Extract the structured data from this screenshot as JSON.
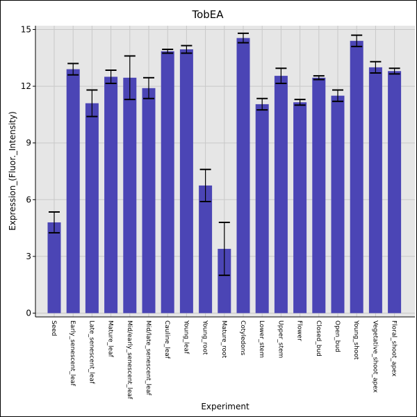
{
  "chart_data": {
    "type": "bar",
    "title": "TobEA",
    "xlabel": "Experiment",
    "ylabel": "Expression_(Fluor._Intensity)",
    "ylim": [
      -0.2,
      15.2
    ],
    "yticks": [
      0,
      3,
      6,
      9,
      12,
      15
    ],
    "grid": true,
    "legend": "none",
    "colors": {
      "bar": "#4b45b5",
      "plot_background": "#e6e6e6",
      "grid": "#c8c8c8",
      "error_bar": "#000000"
    },
    "categories": [
      "Seed",
      "Early_senescent_leaf",
      "Late_senescent_leaf",
      "Mature_leaf",
      "Mid/early_senescent_leaf",
      "Mid/late_senescent_leaf",
      "Cauline_leaf",
      "Young_leaf",
      "Young_root",
      "Mature_root",
      "Cotyledons",
      "Lower_stem",
      "Upper_stem",
      "Flower",
      "Closed_bud",
      "Open_bud",
      "Young_shoot",
      "Vegetative_shoot_apex",
      "Floral_shoot_apex"
    ],
    "values": [
      4.8,
      12.9,
      11.1,
      12.5,
      12.45,
      11.9,
      13.85,
      13.95,
      6.75,
      3.4,
      14.55,
      11.05,
      12.55,
      11.15,
      12.45,
      11.5,
      14.4,
      13.0,
      12.8
    ],
    "errors": [
      0.55,
      0.3,
      0.7,
      0.35,
      1.15,
      0.55,
      0.1,
      0.2,
      0.85,
      1.4,
      0.25,
      0.3,
      0.4,
      0.15,
      0.1,
      0.3,
      0.3,
      0.3,
      0.15
    ]
  }
}
